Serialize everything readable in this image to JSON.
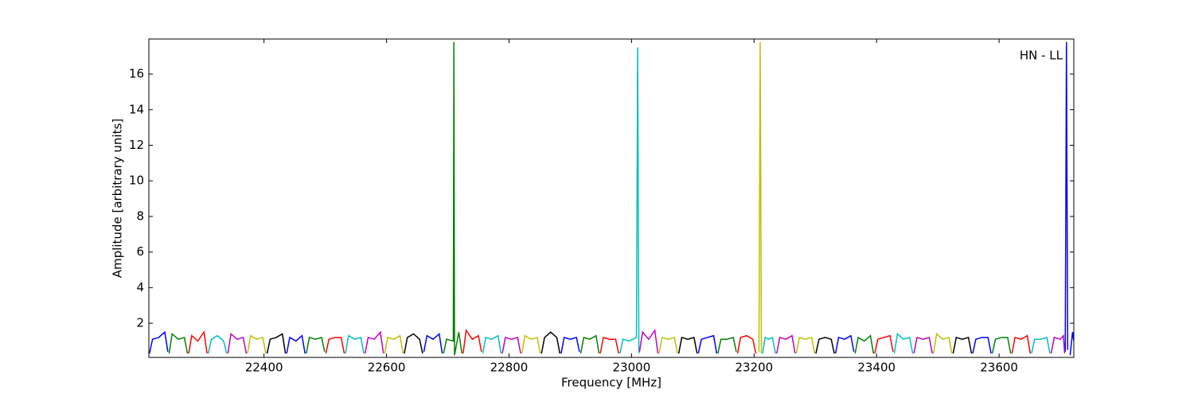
{
  "chart_data": {
    "type": "line",
    "xlabel": "Frequency [MHz]",
    "ylabel": "Amplitude [arbitrary units]",
    "annotation": "HN - LL",
    "xlim": [
      22212,
      23722
    ],
    "ylim": [
      0.08,
      17.97
    ],
    "xticks": [
      22400,
      22600,
      22800,
      23000,
      23200,
      23400,
      23600
    ],
    "yticks": [
      2,
      4,
      6,
      8,
      10,
      12,
      14,
      16
    ],
    "series": [
      {
        "color": "#0000ff",
        "x": [
          22213,
          22218,
          22228,
          22238,
          22243,
          null,
          22437,
          22442,
          22452,
          22462,
          22467,
          null,
          22661,
          22666,
          22676,
          22686,
          22691,
          null,
          22885,
          22890,
          22900,
          22910,
          22915,
          null,
          23109,
          23114,
          23124,
          23134,
          23139,
          null,
          23333,
          23338,
          23348,
          23358,
          23363,
          null,
          23557,
          23562,
          23572,
          23582,
          23587,
          null,
          23708,
          23710,
          23712,
          null,
          23716,
          23720,
          23722
        ],
        "values": [
          0.3,
          1.1,
          1.2,
          1.5,
          0.4,
          null,
          0.3,
          1.2,
          1.0,
          1.3,
          0.3,
          null,
          0.4,
          1.3,
          1.1,
          1.4,
          0.3,
          null,
          0.3,
          1.2,
          1.1,
          1.2,
          0.4,
          null,
          0.3,
          1.1,
          1.2,
          1.3,
          0.3,
          null,
          0.3,
          1.2,
          1.1,
          1.3,
          0.4,
          null,
          0.3,
          1.1,
          1.2,
          1.2,
          0.3,
          null,
          0.4,
          17.8,
          0.5,
          null,
          0.2,
          1.5,
          1.0
        ]
      },
      {
        "color": "#008000",
        "x": [
          22245,
          22250,
          22260,
          22270,
          22275,
          null,
          22469,
          22474,
          22484,
          22494,
          22499,
          null,
          22693,
          22698,
          22709,
          22710,
          22711,
          22718,
          22723,
          null,
          22917,
          22922,
          22932,
          22942,
          22947,
          null,
          23141,
          23146,
          23156,
          23166,
          23171,
          null,
          23365,
          23370,
          23380,
          23390,
          23395,
          null,
          23589,
          23594,
          23604,
          23614,
          23619
        ],
        "values": [
          0.3,
          1.4,
          1.1,
          1.2,
          0.3,
          null,
          0.3,
          1.2,
          1.1,
          1.2,
          0.4,
          null,
          0.3,
          1.1,
          1.0,
          17.8,
          0.2,
          1.5,
          0.3,
          null,
          0.3,
          1.2,
          1.1,
          1.3,
          0.3,
          null,
          0.3,
          1.1,
          1.1,
          1.2,
          0.4,
          null,
          0.3,
          1.2,
          1.0,
          1.3,
          0.3,
          null,
          0.3,
          1.1,
          1.2,
          1.2,
          0.3
        ]
      },
      {
        "color": "#ff0000",
        "x": [
          22277,
          22282,
          22292,
          22302,
          22307,
          null,
          22501,
          22506,
          22516,
          22526,
          22531,
          null,
          22725,
          22730,
          22740,
          22750,
          22755,
          null,
          22949,
          22954,
          22964,
          22974,
          22979,
          null,
          23173,
          23178,
          23188,
          23198,
          23203,
          null,
          23397,
          23402,
          23412,
          23422,
          23427,
          null,
          23621,
          23626,
          23636,
          23646,
          23651
        ],
        "values": [
          0.3,
          1.3,
          1.0,
          1.5,
          0.3,
          null,
          0.3,
          1.1,
          1.2,
          1.2,
          0.3,
          null,
          0.3,
          1.6,
          1.1,
          1.3,
          0.4,
          null,
          0.3,
          1.2,
          1.1,
          1.1,
          0.3,
          null,
          0.3,
          1.2,
          1.3,
          1.1,
          0.3,
          null,
          0.3,
          1.1,
          1.2,
          1.3,
          0.4,
          null,
          0.3,
          1.2,
          1.1,
          1.3,
          0.3
        ]
      },
      {
        "color": "#00bfbf",
        "x": [
          22309,
          22314,
          22324,
          22334,
          22339,
          null,
          22533,
          22538,
          22548,
          22558,
          22563,
          null,
          22757,
          22762,
          22772,
          22782,
          22787,
          null,
          22981,
          22986,
          22996,
          23008,
          23010,
          23012,
          null,
          23214,
          23218,
          23224,
          23230,
          23235,
          null,
          23429,
          23434,
          23444,
          23454,
          23459,
          null,
          23653,
          23658,
          23668,
          23678,
          23683
        ],
        "values": [
          0.3,
          1.1,
          1.3,
          1.0,
          0.3,
          null,
          0.3,
          1.3,
          1.1,
          1.2,
          0.3,
          null,
          0.3,
          1.2,
          1.1,
          1.3,
          0.3,
          null,
          0.3,
          1.1,
          1.0,
          1.2,
          17.5,
          0.3,
          null,
          0.3,
          1.2,
          1.1,
          1.2,
          0.3,
          null,
          0.3,
          1.4,
          1.1,
          1.2,
          0.3,
          null,
          0.3,
          1.1,
          1.1,
          1.2,
          0.3
        ]
      },
      {
        "color": "#bf00bf",
        "x": [
          22341,
          22346,
          22356,
          22366,
          22371,
          null,
          22565,
          22570,
          22580,
          22590,
          22595,
          null,
          22789,
          22794,
          22804,
          22814,
          22819,
          null,
          23013,
          23018,
          23028,
          23038,
          23043,
          null,
          23237,
          23242,
          23252,
          23262,
          23267,
          null,
          23461,
          23466,
          23476,
          23486,
          23491,
          null,
          23685,
          23690,
          23700,
          23705,
          23707
        ],
        "values": [
          0.3,
          1.4,
          1.1,
          1.2,
          0.3,
          null,
          0.3,
          1.2,
          1.1,
          1.5,
          0.3,
          null,
          0.3,
          1.2,
          1.1,
          1.2,
          0.3,
          null,
          0.4,
          1.5,
          1.1,
          1.6,
          0.3,
          null,
          0.3,
          1.2,
          1.1,
          1.3,
          0.3,
          null,
          0.3,
          1.2,
          1.1,
          1.2,
          0.3,
          null,
          0.3,
          1.2,
          1.1,
          1.3,
          0.3
        ]
      },
      {
        "color": "#bfbf00",
        "x": [
          22373,
          22378,
          22388,
          22398,
          22403,
          null,
          22597,
          22602,
          22612,
          22622,
          22627,
          null,
          22821,
          22826,
          22836,
          22846,
          22851,
          null,
          23045,
          23050,
          23060,
          23070,
          23075,
          null,
          23208,
          23210,
          23212,
          null,
          23269,
          23274,
          23284,
          23294,
          23299,
          null,
          23493,
          23498,
          23508,
          23518,
          23523
        ],
        "values": [
          0.3,
          1.3,
          1.1,
          1.2,
          0.3,
          null,
          0.3,
          1.2,
          1.1,
          1.3,
          0.3,
          null,
          0.3,
          1.3,
          1.1,
          1.2,
          0.3,
          null,
          0.3,
          1.2,
          1.1,
          1.2,
          0.3,
          null,
          0.4,
          17.8,
          0.3,
          null,
          0.3,
          1.2,
          1.1,
          1.2,
          0.3,
          null,
          0.3,
          1.4,
          1.1,
          1.2,
          0.3
        ]
      },
      {
        "color": "#000000",
        "x": [
          22405,
          22410,
          22420,
          22430,
          22435,
          null,
          22629,
          22634,
          22644,
          22654,
          22659,
          null,
          22853,
          22858,
          22868,
          22878,
          22883,
          null,
          23077,
          23082,
          23092,
          23102,
          23107,
          null,
          23301,
          23306,
          23316,
          23326,
          23331,
          null,
          23525,
          23530,
          23540,
          23550,
          23555
        ],
        "values": [
          0.3,
          1.1,
          1.2,
          1.4,
          0.3,
          null,
          0.3,
          1.2,
          1.4,
          1.1,
          0.3,
          null,
          0.3,
          1.2,
          1.5,
          1.2,
          0.3,
          null,
          0.3,
          1.2,
          1.1,
          1.2,
          0.3,
          null,
          0.3,
          1.1,
          1.2,
          1.1,
          0.3,
          null,
          0.3,
          1.2,
          1.1,
          1.2,
          0.3
        ]
      }
    ]
  }
}
